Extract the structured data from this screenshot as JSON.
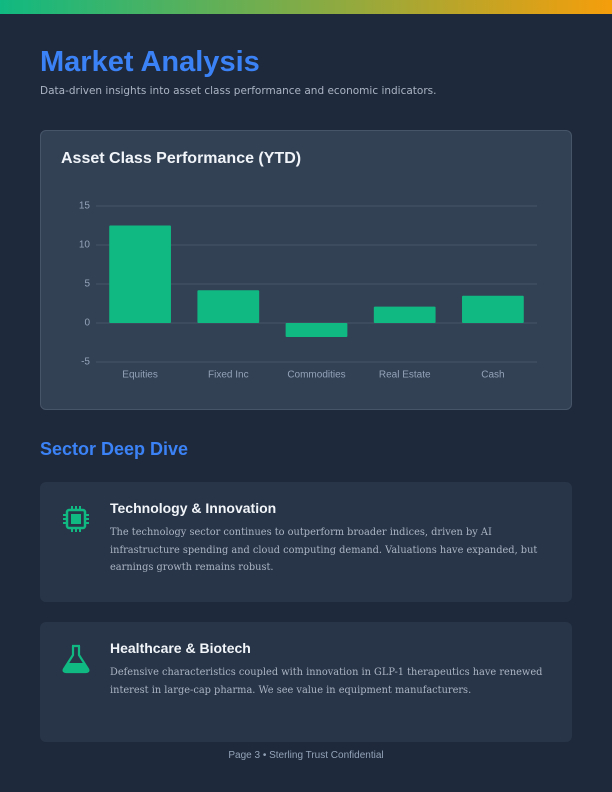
{
  "header": {
    "title": "Market Analysis",
    "subtitle": "Data-driven insights into asset class performance and economic indicators."
  },
  "chart_data": {
    "type": "bar",
    "title": "Asset Class Performance (YTD)",
    "categories": [
      "Equities",
      "Fixed Inc",
      "Commodities",
      "Real Estate",
      "Cash"
    ],
    "values": [
      12.5,
      4.2,
      -1.8,
      2.1,
      3.5
    ],
    "color": "#10b981",
    "ylim": [
      -5,
      15
    ],
    "yticks": [
      -5,
      0,
      5,
      10,
      15
    ],
    "grid": true
  },
  "section": {
    "title": "Sector Deep Dive",
    "cards": [
      {
        "title": "Technology & Innovation",
        "body": "The technology sector continues to outperform broader indices, driven by AI infrastructure spending and cloud computing demand. Valuations have expanded, but earnings growth remains robust."
      },
      {
        "title": "Healthcare & Biotech",
        "body": "Defensive characteristics coupled with innovation in GLP-1 therapeutics have renewed interest in large-cap pharma. We see value in equipment manufacturers."
      }
    ]
  },
  "footer": "Page 3 • Sterling Trust Confidential"
}
